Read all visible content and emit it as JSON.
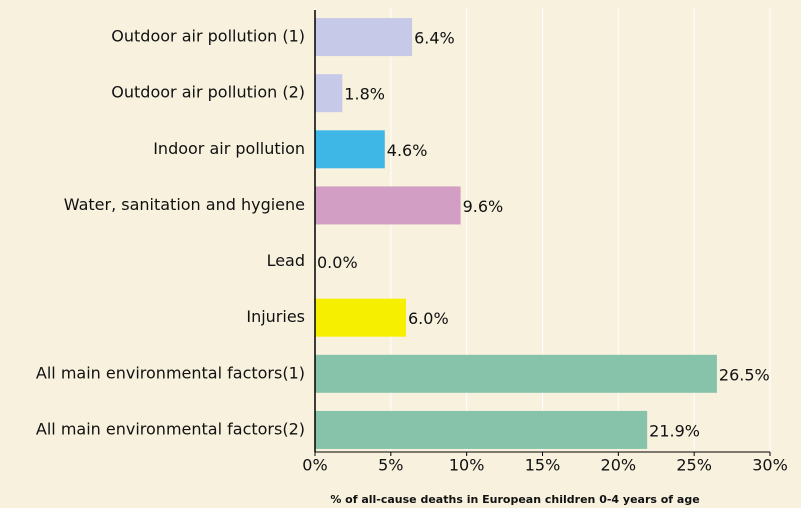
{
  "chart_data": {
    "type": "hbar",
    "xlabel": "% of all-cause deaths in European children 0-4 years of age",
    "categories": [
      "Outdoor air pollution (1)",
      "Outdoor air pollution (2)",
      "Indoor air pollution",
      "Water, sanitation and hygiene",
      "Lead",
      "Injuries",
      "All main environmental factors(1)",
      "All main environmental factors(2)"
    ],
    "values": [
      6.4,
      1.8,
      4.6,
      9.6,
      0.0,
      6.0,
      26.5,
      21.9
    ],
    "value_labels": [
      "6.4%",
      "1.8%",
      "4.6%",
      "9.6%",
      "0.0%",
      "6.0%",
      "26.5%",
      "21.9%"
    ],
    "colors": [
      "#c6c9e8",
      "#c6c9e8",
      "#3fb7e6",
      "#d39ec4",
      "#f7ef00",
      "#f7ef00",
      "#86c3aa",
      "#86c3aa"
    ],
    "xlim": [
      0,
      30
    ],
    "xticks": [
      {
        "value": 0,
        "label": "0%"
      },
      {
        "value": 5,
        "label": "5%"
      },
      {
        "value": 10,
        "label": "10%"
      },
      {
        "value": 15,
        "label": "15%"
      },
      {
        "value": 20,
        "label": "20%"
      },
      {
        "value": 25,
        "label": "25%"
      },
      {
        "value": 30,
        "label": "30%"
      }
    ],
    "grid": true
  }
}
